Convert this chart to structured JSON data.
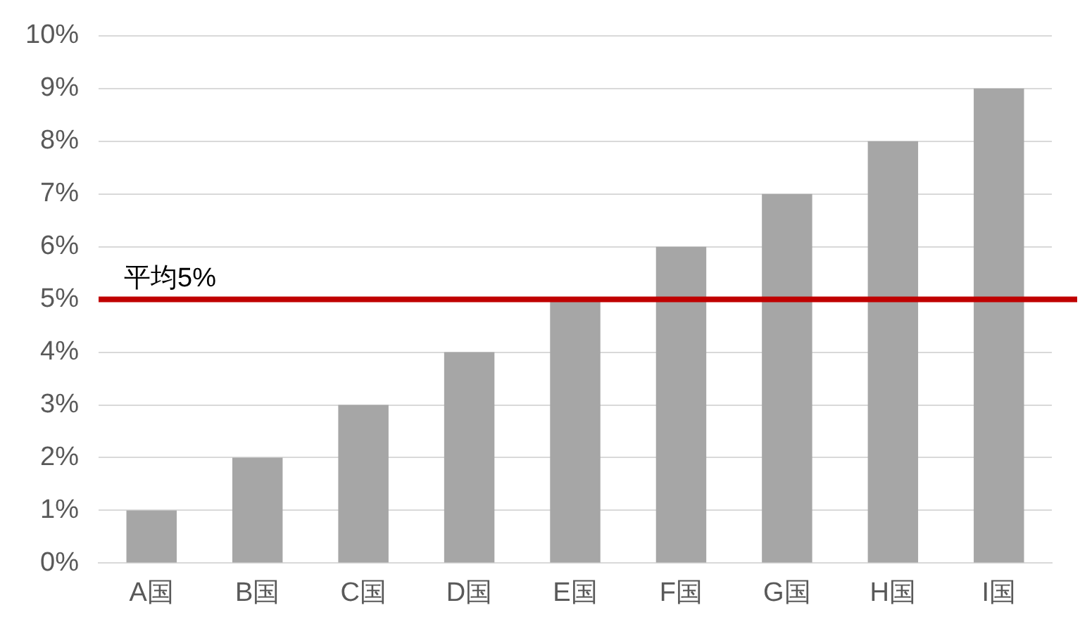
{
  "chart_data": {
    "type": "bar",
    "categories": [
      "A国",
      "B国",
      "C国",
      "D国",
      "E国",
      "F国",
      "G国",
      "H国",
      "I国"
    ],
    "values": [
      1,
      2,
      3,
      4,
      5,
      6,
      7,
      8,
      9
    ],
    "color": "#a6a6a6",
    "ylim": [
      0,
      10
    ],
    "yticks": [
      {
        "value": 0,
        "label": "0%"
      },
      {
        "value": 1,
        "label": "1%"
      },
      {
        "value": 2,
        "label": "2%"
      },
      {
        "value": 3,
        "label": "3%"
      },
      {
        "value": 4,
        "label": "4%"
      },
      {
        "value": 5,
        "label": "5%"
      },
      {
        "value": 6,
        "label": "6%"
      },
      {
        "value": 7,
        "label": "7%"
      },
      {
        "value": 8,
        "label": "8%"
      },
      {
        "value": 9,
        "label": "9%"
      },
      {
        "value": 10,
        "label": "10%"
      }
    ],
    "grid": "y",
    "ref_lines": [
      {
        "axis": "y",
        "value": 5,
        "label": "平均5%",
        "color": "#c00000"
      }
    ]
  }
}
